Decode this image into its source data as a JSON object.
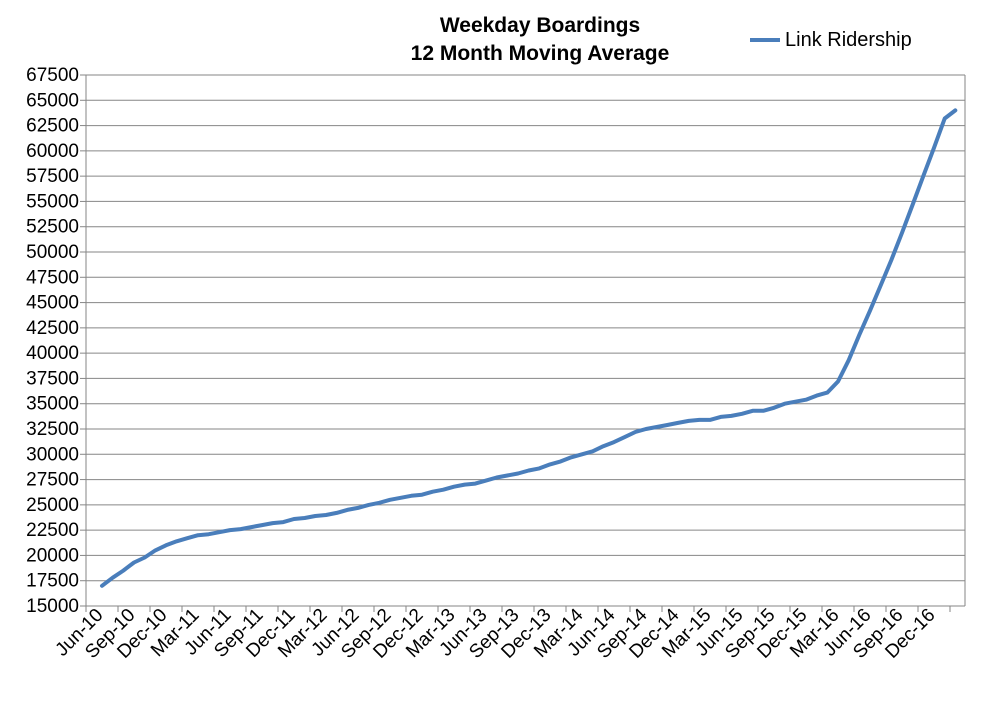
{
  "chart_data": {
    "type": "line",
    "title": "Weekday Boardings",
    "subtitle": "12 Month Moving Average",
    "xlabel": "",
    "ylabel": "",
    "ylim": [
      15000,
      67500
    ],
    "y_ticks": [
      "15000",
      "17500",
      "20000",
      "22500",
      "25000",
      "27500",
      "30000",
      "32500",
      "35000",
      "37500",
      "40000",
      "42500",
      "45000",
      "47500",
      "50000",
      "52500",
      "55000",
      "57500",
      "60000",
      "62500",
      "65000",
      "67500"
    ],
    "x_tick_labels": [
      "Jun-10",
      "Sep-10",
      "Dec-10",
      "Mar-11",
      "Jun-11",
      "Sep-11",
      "Dec-11",
      "Mar-12",
      "Jun-12",
      "Sep-12",
      "Dec-12",
      "Mar-13",
      "Jun-13",
      "Sep-13",
      "Dec-13",
      "Mar-14",
      "Jun-14",
      "Sep-14",
      "Dec-14",
      "Mar-15",
      "Jun-15",
      "Sep-15",
      "Dec-15",
      "Mar-16",
      "Jun-16",
      "Sep-16",
      "Dec-16"
    ],
    "grid": true,
    "legend_position": "top-right",
    "colors": {
      "series": "#4a7ebb",
      "grid": "#868686",
      "axis": "#868686"
    },
    "categories": [
      "Jun-10",
      "Jul-10",
      "Aug-10",
      "Sep-10",
      "Oct-10",
      "Nov-10",
      "Dec-10",
      "Jan-11",
      "Feb-11",
      "Mar-11",
      "Apr-11",
      "May-11",
      "Jun-11",
      "Jul-11",
      "Aug-11",
      "Sep-11",
      "Oct-11",
      "Nov-11",
      "Dec-11",
      "Jan-12",
      "Feb-12",
      "Mar-12",
      "Apr-12",
      "May-12",
      "Jun-12",
      "Jul-12",
      "Aug-12",
      "Sep-12",
      "Oct-12",
      "Nov-12",
      "Dec-12",
      "Jan-13",
      "Feb-13",
      "Mar-13",
      "Apr-13",
      "May-13",
      "Jun-13",
      "Jul-13",
      "Aug-13",
      "Sep-13",
      "Oct-13",
      "Nov-13",
      "Dec-13",
      "Jan-14",
      "Feb-14",
      "Mar-14",
      "Apr-14",
      "May-14",
      "Jun-14",
      "Jul-14",
      "Aug-14",
      "Sep-14",
      "Oct-14",
      "Nov-14",
      "Dec-14",
      "Jan-15",
      "Feb-15",
      "Mar-15",
      "Apr-15",
      "May-15",
      "Jun-15",
      "Jul-15",
      "Aug-15",
      "Sep-15",
      "Oct-15",
      "Nov-15",
      "Dec-15",
      "Jan-16",
      "Feb-16",
      "Mar-16",
      "Apr-16",
      "May-16",
      "Jun-16",
      "Jul-16",
      "Aug-16",
      "Sep-16",
      "Oct-16",
      "Nov-16",
      "Dec-16",
      "Jan-17",
      "Feb-17"
    ],
    "series": [
      {
        "name": "Link Ridership",
        "values": [
          17000,
          17800,
          18500,
          19300,
          19800,
          20500,
          21000,
          21400,
          21700,
          22000,
          22100,
          22300,
          22500,
          22600,
          22800,
          23000,
          23200,
          23300,
          23600,
          23700,
          23900,
          24000,
          24200,
          24500,
          24700,
          25000,
          25200,
          25500,
          25700,
          25900,
          26000,
          26300,
          26500,
          26800,
          27000,
          27100,
          27400,
          27700,
          27900,
          28100,
          28400,
          28600,
          29000,
          29300,
          29700,
          30000,
          30300,
          30800,
          31200,
          31700,
          32200,
          32500,
          32700,
          32900,
          33100,
          33300,
          33400,
          33400,
          33700,
          33800,
          34000,
          34300,
          34300,
          34600,
          35000,
          35200,
          35400,
          35800,
          36100,
          37200,
          39300,
          41800,
          44200,
          46700,
          49200,
          51900,
          54700,
          57500,
          60300,
          63200,
          64000
        ]
      }
    ]
  }
}
